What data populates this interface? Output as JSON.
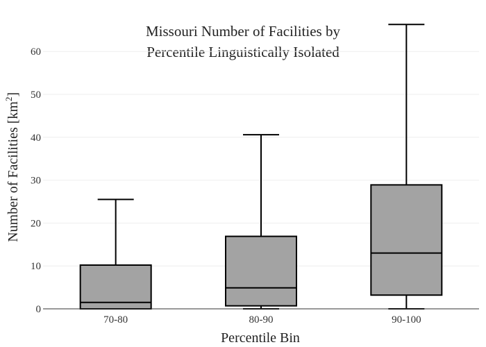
{
  "chart_data": {
    "type": "box",
    "title_lines": [
      "Missouri Number of Facilities by",
      "Percentile Linguistically Isolated"
    ],
    "xlabel": "Percentile Bin",
    "ylabel_main": "Number of Facilities  [km",
    "ylabel_sup": "2",
    "ylabel_end": "]",
    "categories": [
      "70-80",
      "80-90",
      "90-100"
    ],
    "boxes": [
      {
        "category": "70-80",
        "min": 0,
        "q1": 0,
        "median": 1.5,
        "q3": 10.2,
        "max": 25.5
      },
      {
        "category": "80-90",
        "min": 0,
        "q1": 0.7,
        "median": 4.9,
        "q3": 16.9,
        "max": 40.6
      },
      {
        "category": "90-100",
        "min": 0,
        "q1": 3.2,
        "median": 13,
        "q3": 28.9,
        "max": 66.3
      }
    ],
    "ylim": [
      0,
      70
    ],
    "yticks": [
      0,
      10,
      20,
      30,
      40,
      50,
      60
    ],
    "box_color": "#a3a3a3",
    "line_color": "#000000",
    "grid": true,
    "grid_color": "#eeeeee"
  }
}
